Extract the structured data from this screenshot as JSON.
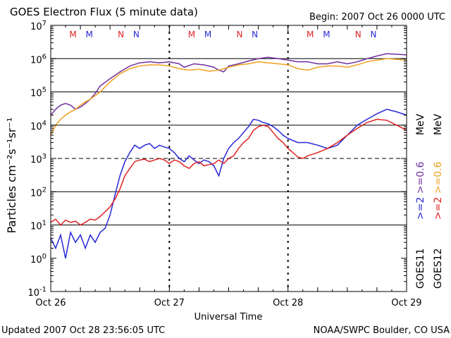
{
  "header": {
    "title": "GOES Electron Flux (5 minute data)",
    "begin": "Begin: 2007 Oct 26 0000 UTC"
  },
  "footer": {
    "updated": "Updated 2007 Oct 28 23:56:05 UTC",
    "credit": "NOAA/SWPC Boulder, CO USA"
  },
  "colors": {
    "goes11_gt2": "#2828d8",
    "goes11_gt06": "#7030a0",
    "goes12_gt2": "#e02020",
    "goes12_gt06": "#f0a020",
    "marker_M": "#e02020",
    "marker_N_red": "#e02020",
    "marker_N_blue": "#2828d8"
  },
  "chart_data": {
    "type": "line",
    "title": "GOES Electron Flux (5 minute data)",
    "xlabel": "Universal Time",
    "ylabel": "Particles cm⁻²s⁻¹sr⁻¹",
    "yscale": "log",
    "ylim": [
      0.1,
      10000000
    ],
    "xlim": [
      0,
      72
    ],
    "x_unit": "hours since 2007 Oct 26 00 UTC",
    "x_ticks": [
      {
        "x": 0,
        "label": "Oct 26"
      },
      {
        "x": 24,
        "label": "Oct 27"
      },
      {
        "x": 48,
        "label": "Oct 28"
      },
      {
        "x": 72,
        "label": "Oct 29"
      }
    ],
    "y_ticks": [
      {
        "exp": -1,
        "label": "10",
        "sup": "-1"
      },
      {
        "exp": 0,
        "label": "10",
        "sup": "0"
      },
      {
        "exp": 1,
        "label": "10",
        "sup": "1"
      },
      {
        "exp": 2,
        "label": "10",
        "sup": "2"
      },
      {
        "exp": 3,
        "label": "10",
        "sup": "3"
      },
      {
        "exp": 4,
        "label": "10",
        "sup": "4"
      },
      {
        "exp": 5,
        "label": "10",
        "sup": "5"
      },
      {
        "exp": 6,
        "label": "10",
        "sup": "6"
      },
      {
        "exp": 7,
        "label": "10",
        "sup": "7"
      }
    ],
    "grid": "horizontal solid lines at 10^1, 10^2, 10^4, 10^5, 10^6; dashed at 10^3 and at day boundaries",
    "legend": [
      {
        "group": "GOES11",
        "label": ">=2",
        "color": "#2828d8"
      },
      {
        "group": "GOES11",
        "label": ">=0.6",
        "color": "#7030a0"
      },
      {
        "group": "GOES12",
        "label": ">=2",
        "color": "#e02020"
      },
      {
        "group": "GOES12",
        "label": ">=0.6",
        "color": "#f0a020"
      },
      {
        "unit": "MeV"
      }
    ],
    "markers": [
      {
        "x": 4.5,
        "label": "M",
        "color": "#e02020"
      },
      {
        "x": 7.8,
        "label": "M",
        "color": "#2828d8"
      },
      {
        "x": 14.2,
        "label": "N",
        "color": "#e02020"
      },
      {
        "x": 17.3,
        "label": "N",
        "color": "#2828d8"
      },
      {
        "x": 28.5,
        "label": "M",
        "color": "#e02020"
      },
      {
        "x": 31.8,
        "label": "M",
        "color": "#2828d8"
      },
      {
        "x": 38.2,
        "label": "N",
        "color": "#e02020"
      },
      {
        "x": 41.3,
        "label": "N",
        "color": "#2828d8"
      },
      {
        "x": 52.5,
        "label": "M",
        "color": "#e02020"
      },
      {
        "x": 55.8,
        "label": "M",
        "color": "#2828d8"
      },
      {
        "x": 62.2,
        "label": "N",
        "color": "#e02020"
      },
      {
        "x": 65.3,
        "label": "N",
        "color": "#2828d8"
      }
    ],
    "series": [
      {
        "name": "GOES11 >=0.6 MeV",
        "color": "#7030a0",
        "points": [
          [
            0,
            20000
          ],
          [
            1,
            30000
          ],
          [
            2,
            40000
          ],
          [
            3,
            45000
          ],
          [
            4,
            40000
          ],
          [
            5,
            30000
          ],
          [
            6,
            35000
          ],
          [
            7,
            45000
          ],
          [
            8,
            60000
          ],
          [
            9,
            90000
          ],
          [
            10,
            150000
          ],
          [
            12,
            250000
          ],
          [
            14,
            400000
          ],
          [
            16,
            600000
          ],
          [
            18,
            750000
          ],
          [
            20,
            800000
          ],
          [
            22,
            750000
          ],
          [
            24,
            800000
          ],
          [
            26,
            700000
          ],
          [
            27,
            550000
          ],
          [
            29,
            700000
          ],
          [
            31,
            650000
          ],
          [
            33,
            550000
          ],
          [
            34,
            450000
          ],
          [
            35,
            400000
          ],
          [
            36,
            600000
          ],
          [
            38,
            700000
          ],
          [
            40,
            850000
          ],
          [
            42,
            1000000
          ],
          [
            44,
            1100000
          ],
          [
            46,
            1000000
          ],
          [
            48,
            900000
          ],
          [
            50,
            800000
          ],
          [
            52,
            800000
          ],
          [
            54,
            700000
          ],
          [
            56,
            700000
          ],
          [
            58,
            800000
          ],
          [
            60,
            700000
          ],
          [
            62,
            800000
          ],
          [
            64,
            1000000
          ],
          [
            66,
            1200000
          ],
          [
            68,
            1400000
          ],
          [
            70,
            1350000
          ],
          [
            72,
            1300000
          ]
        ]
      },
      {
        "name": "GOES12 >=0.6 MeV",
        "color": "#f0a020",
        "points": [
          [
            0,
            5000
          ],
          [
            1,
            10000
          ],
          [
            2,
            15000
          ],
          [
            3,
            20000
          ],
          [
            4,
            25000
          ],
          [
            5,
            30000
          ],
          [
            6,
            40000
          ],
          [
            7,
            50000
          ],
          [
            8,
            60000
          ],
          [
            10,
            100000
          ],
          [
            12,
            200000
          ],
          [
            14,
            350000
          ],
          [
            16,
            500000
          ],
          [
            18,
            600000
          ],
          [
            20,
            650000
          ],
          [
            22,
            650000
          ],
          [
            24,
            600000
          ],
          [
            26,
            500000
          ],
          [
            28,
            450000
          ],
          [
            30,
            480000
          ],
          [
            32,
            420000
          ],
          [
            34,
            450000
          ],
          [
            36,
            550000
          ],
          [
            38,
            650000
          ],
          [
            40,
            700000
          ],
          [
            42,
            800000
          ],
          [
            44,
            750000
          ],
          [
            46,
            700000
          ],
          [
            48,
            650000
          ],
          [
            50,
            500000
          ],
          [
            52,
            450000
          ],
          [
            54,
            550000
          ],
          [
            56,
            600000
          ],
          [
            58,
            600000
          ],
          [
            60,
            550000
          ],
          [
            62,
            650000
          ],
          [
            64,
            800000
          ],
          [
            66,
            900000
          ],
          [
            68,
            1000000
          ],
          [
            70,
            950000
          ],
          [
            72,
            900000
          ]
        ]
      },
      {
        "name": "GOES11 >=2 MeV",
        "color": "#2828d8",
        "points": [
          [
            0,
            4
          ],
          [
            1,
            2
          ],
          [
            2,
            5
          ],
          [
            3,
            1
          ],
          [
            4,
            6
          ],
          [
            5,
            3
          ],
          [
            6,
            5
          ],
          [
            7,
            2
          ],
          [
            8,
            5
          ],
          [
            9,
            3
          ],
          [
            10,
            6
          ],
          [
            11,
            8
          ],
          [
            12,
            20
          ],
          [
            13,
            80
          ],
          [
            14,
            300
          ],
          [
            15,
            800
          ],
          [
            16,
            1500
          ],
          [
            17,
            2500
          ],
          [
            18,
            2000
          ],
          [
            19,
            2500
          ],
          [
            20,
            2800
          ],
          [
            21,
            2000
          ],
          [
            22,
            2500
          ],
          [
            23,
            2200
          ],
          [
            24,
            2000
          ],
          [
            25,
            1500
          ],
          [
            26,
            1000
          ],
          [
            27,
            800
          ],
          [
            28,
            1200
          ],
          [
            29,
            900
          ],
          [
            30,
            700
          ],
          [
            31,
            900
          ],
          [
            32,
            800
          ],
          [
            33,
            600
          ],
          [
            34,
            300
          ],
          [
            35,
            1000
          ],
          [
            36,
            2000
          ],
          [
            37,
            3000
          ],
          [
            38,
            4000
          ],
          [
            39,
            6000
          ],
          [
            40,
            9000
          ],
          [
            41,
            15000
          ],
          [
            42,
            14000
          ],
          [
            43,
            12000
          ],
          [
            44,
            11000
          ],
          [
            45,
            9000
          ],
          [
            46,
            7000
          ],
          [
            47,
            5000
          ],
          [
            48,
            4000
          ],
          [
            50,
            3000
          ],
          [
            52,
            3000
          ],
          [
            54,
            2500
          ],
          [
            56,
            2000
          ],
          [
            58,
            2500
          ],
          [
            60,
            5000
          ],
          [
            62,
            10000
          ],
          [
            64,
            15000
          ],
          [
            66,
            22000
          ],
          [
            68,
            30000
          ],
          [
            70,
            25000
          ],
          [
            72,
            20000
          ]
        ]
      },
      {
        "name": "GOES12 >=2 MeV",
        "color": "#e02020",
        "points": [
          [
            0,
            12
          ],
          [
            1,
            15
          ],
          [
            2,
            10
          ],
          [
            3,
            14
          ],
          [
            4,
            12
          ],
          [
            5,
            13
          ],
          [
            6,
            10
          ],
          [
            7,
            12
          ],
          [
            8,
            15
          ],
          [
            9,
            14
          ],
          [
            10,
            18
          ],
          [
            11,
            25
          ],
          [
            12,
            35
          ],
          [
            13,
            60
          ],
          [
            14,
            120
          ],
          [
            15,
            300
          ],
          [
            16,
            500
          ],
          [
            17,
            800
          ],
          [
            18,
            900
          ],
          [
            19,
            950
          ],
          [
            20,
            800
          ],
          [
            21,
            900
          ],
          [
            22,
            1000
          ],
          [
            23,
            900
          ],
          [
            24,
            700
          ],
          [
            25,
            900
          ],
          [
            26,
            800
          ],
          [
            27,
            600
          ],
          [
            28,
            500
          ],
          [
            29,
            700
          ],
          [
            30,
            800
          ],
          [
            31,
            600
          ],
          [
            32,
            650
          ],
          [
            33,
            700
          ],
          [
            34,
            900
          ],
          [
            35,
            700
          ],
          [
            36,
            1000
          ],
          [
            37,
            1200
          ],
          [
            38,
            2000
          ],
          [
            39,
            3000
          ],
          [
            40,
            4000
          ],
          [
            41,
            7000
          ],
          [
            42,
            9000
          ],
          [
            43,
            10000
          ],
          [
            44,
            9000
          ],
          [
            45,
            6000
          ],
          [
            46,
            4000
          ],
          [
            47,
            3000
          ],
          [
            48,
            2000
          ],
          [
            49,
            1500
          ],
          [
            50,
            1100
          ],
          [
            51,
            1000
          ],
          [
            52,
            1200
          ],
          [
            54,
            1500
          ],
          [
            56,
            2000
          ],
          [
            58,
            3000
          ],
          [
            60,
            5000
          ],
          [
            62,
            8000
          ],
          [
            64,
            12000
          ],
          [
            66,
            15000
          ],
          [
            68,
            14000
          ],
          [
            70,
            10000
          ],
          [
            72,
            7000
          ]
        ]
      }
    ]
  }
}
